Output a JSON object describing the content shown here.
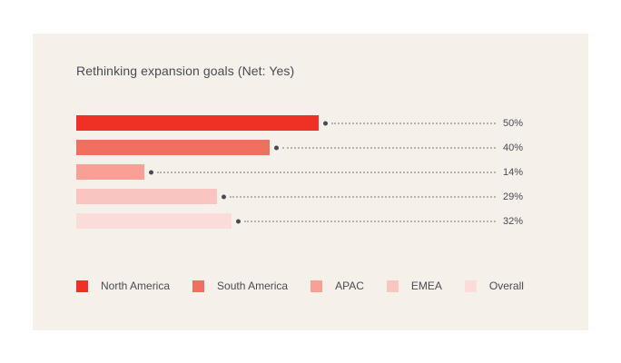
{
  "theme": {
    "page_background": "#ffffff",
    "card_background": "#f5f1ea",
    "text_color": "#4a4a52",
    "leader_dot_color": "#4a4a52",
    "leader_line_color": "#b9b3aa"
  },
  "chart_data": {
    "type": "bar",
    "orientation": "horizontal",
    "title": "Rethinking expansion goals (Net: Yes)",
    "categories": [
      "North America",
      "South America",
      "APAC",
      "EMEA",
      "Overall"
    ],
    "values": [
      50,
      40,
      14,
      29,
      32
    ],
    "value_labels": [
      "50%",
      "40%",
      "14%",
      "29%",
      "32%"
    ],
    "series_colors": [
      "#ee3124",
      "#f0705f",
      "#f89f96",
      "#f9c5c0",
      "#fcdcd9"
    ],
    "xlabel": "",
    "ylabel": "",
    "xlim": [
      0,
      87
    ],
    "grid": false,
    "legend_position": "bottom",
    "leader_style": "dotted-line-with-dot-marker"
  }
}
